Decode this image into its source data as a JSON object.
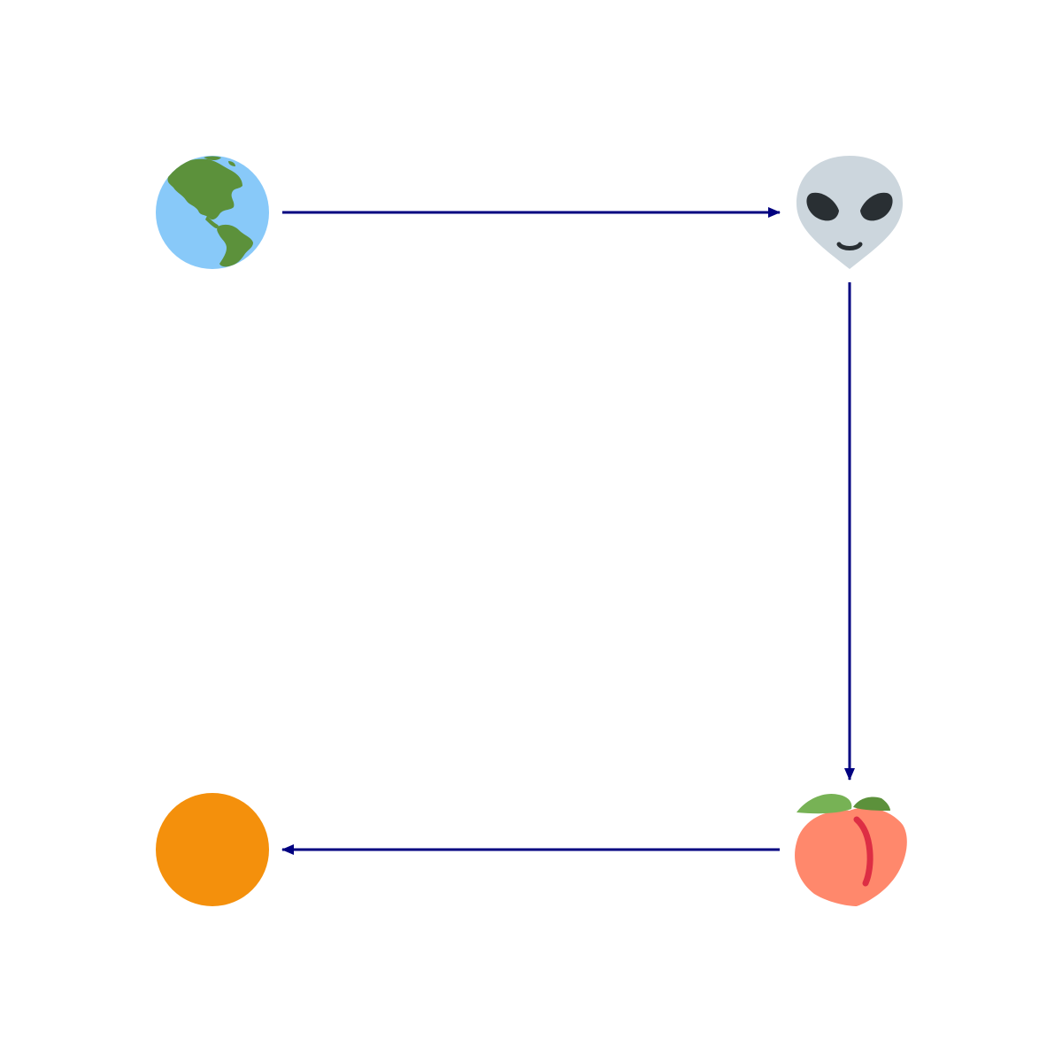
{
  "diagram": {
    "type": "flow",
    "background": "#ffffff",
    "arrow_color": "#000080",
    "nodes": [
      {
        "id": "earth",
        "icon": "earth-americas-icon",
        "colors": {
          "ocean": "#88c9f9",
          "land": "#5c913b"
        }
      },
      {
        "id": "alien",
        "icon": "alien-icon",
        "colors": {
          "face": "#ccd6dd",
          "features": "#292f33"
        }
      },
      {
        "id": "peach",
        "icon": "peach-icon",
        "colors": {
          "fruit": "#ff886c",
          "leaf": "#77b255",
          "crease": "#dd2e44"
        }
      },
      {
        "id": "orange-circle",
        "icon": "orange-circle-icon",
        "colors": {
          "fill": "#f4900c"
        }
      }
    ],
    "edges": [
      {
        "from": "earth",
        "to": "alien"
      },
      {
        "from": "alien",
        "to": "peach"
      },
      {
        "from": "peach",
        "to": "orange-circle"
      }
    ]
  }
}
